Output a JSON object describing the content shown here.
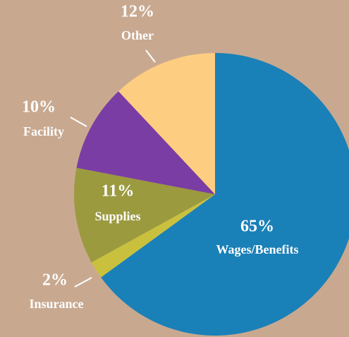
{
  "chart_data": {
    "type": "pie",
    "categories": [
      "Wages/Benefits",
      "Insurance",
      "Supplies",
      "Facility",
      "Other"
    ],
    "values": [
      65,
      2,
      11,
      10,
      12
    ],
    "value_labels": [
      "65%",
      "2%",
      "11%",
      "10%",
      "12%"
    ],
    "colors": [
      "#1a80b8",
      "#c9c13e",
      "#9b9a3f",
      "#7a3da3",
      "#fdcd82"
    ]
  }
}
